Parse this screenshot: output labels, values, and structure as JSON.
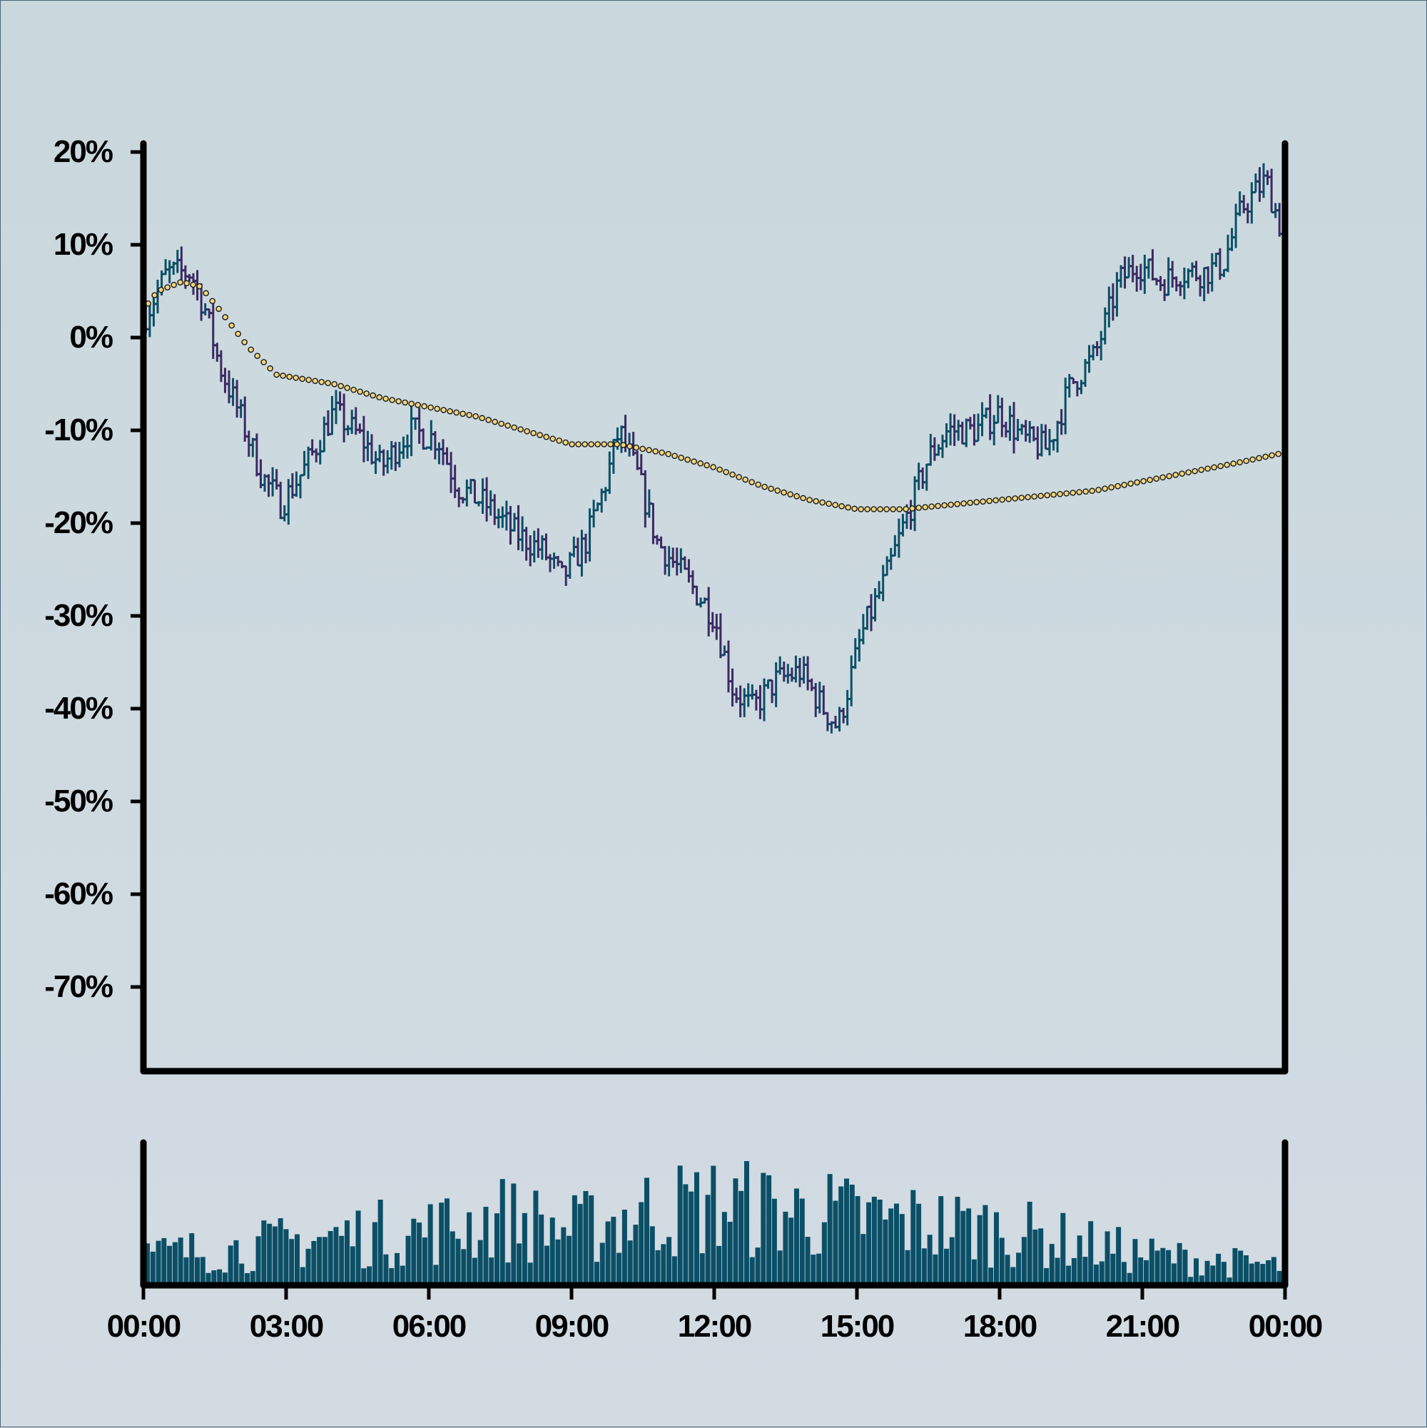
{
  "chart_data": [
    {
      "type": "ohlc",
      "panel": "price",
      "title": "",
      "xlabel": "",
      "ylabel": "",
      "ylim": [
        -80,
        20
      ],
      "y_ticks": [
        "20%",
        "10%",
        "0%",
        "-10%",
        "-20%",
        "-30%",
        "-40%",
        "-50%",
        "-60%",
        "-70%"
      ],
      "y_tick_values": [
        20,
        10,
        0,
        -10,
        -20,
        -30,
        -40,
        -50,
        -60,
        -70
      ],
      "x_ticks": [
        "00:00",
        "03:00",
        "06:00",
        "09:00",
        "12:00",
        "15:00",
        "18:00",
        "21:00",
        "00:00"
      ],
      "xlim_hours": [
        0,
        24
      ],
      "grid": false,
      "bar_interval_minutes": 5,
      "close_path": [
        [
          0.0,
          2
        ],
        [
          0.5,
          7
        ],
        [
          1.0,
          7
        ],
        [
          1.3,
          3
        ],
        [
          1.6,
          -3
        ],
        [
          2.0,
          -8
        ],
        [
          2.5,
          -15
        ],
        [
          2.9,
          -18
        ],
        [
          3.4,
          -14
        ],
        [
          4.0,
          -8
        ],
        [
          4.6,
          -11
        ],
        [
          5.0,
          -14
        ],
        [
          5.6,
          -10
        ],
        [
          6.2,
          -11
        ],
        [
          6.6,
          -16
        ],
        [
          7.2,
          -18
        ],
        [
          7.8,
          -21
        ],
        [
          8.4,
          -23
        ],
        [
          8.8,
          -26
        ],
        [
          9.3,
          -22
        ],
        [
          9.7,
          -16
        ],
        [
          10.0,
          -10
        ],
        [
          10.4,
          -15
        ],
        [
          10.8,
          -22
        ],
        [
          11.4,
          -26
        ],
        [
          12.0,
          -30
        ],
        [
          12.4,
          -38
        ],
        [
          12.8,
          -40
        ],
        [
          13.3,
          -37
        ],
        [
          13.8,
          -36
        ],
        [
          14.3,
          -40
        ],
        [
          14.6,
          -42
        ],
        [
          15.1,
          -32
        ],
        [
          15.6,
          -26
        ],
        [
          16.0,
          -20
        ],
        [
          16.5,
          -13
        ],
        [
          16.9,
          -10
        ],
        [
          17.5,
          -10
        ],
        [
          18.0,
          -8
        ],
        [
          18.5,
          -11
        ],
        [
          19.0,
          -12
        ],
        [
          19.5,
          -5
        ],
        [
          20.0,
          -2
        ],
        [
          20.5,
          6
        ],
        [
          20.9,
          8
        ],
        [
          21.4,
          6
        ],
        [
          21.8,
          7
        ],
        [
          22.3,
          7
        ],
        [
          22.7,
          8
        ],
        [
          23.1,
          14
        ],
        [
          23.6,
          17
        ],
        [
          23.9,
          12
        ]
      ],
      "colors": {
        "up": "#0b4f66",
        "down": "#3a2a62"
      }
    },
    {
      "type": "line",
      "panel": "price",
      "style": "dotted",
      "color": "#f2d57a",
      "marker_edge": "#1a1a1a",
      "points": [
        [
          0.0,
          3
        ],
        [
          0.3,
          5
        ],
        [
          0.8,
          6
        ],
        [
          1.2,
          5.5
        ],
        [
          1.6,
          3
        ],
        [
          2.2,
          -1
        ],
        [
          2.8,
          -4
        ],
        [
          3.4,
          -4.5
        ],
        [
          4.0,
          -5
        ],
        [
          5.0,
          -6.5
        ],
        [
          6.0,
          -7.5
        ],
        [
          7.0,
          -8.5
        ],
        [
          8.0,
          -10
        ],
        [
          9.0,
          -11.5
        ],
        [
          10.0,
          -11.5
        ],
        [
          11.0,
          -12.5
        ],
        [
          12.0,
          -14
        ],
        [
          13.0,
          -16
        ],
        [
          14.0,
          -17.5
        ],
        [
          15.0,
          -18.5
        ],
        [
          16.0,
          -18.5
        ],
        [
          17.0,
          -18
        ],
        [
          18.0,
          -17.5
        ],
        [
          19.0,
          -17
        ],
        [
          20.0,
          -16.5
        ],
        [
          21.0,
          -15.5
        ],
        [
          22.0,
          -14.5
        ],
        [
          23.0,
          -13.5
        ],
        [
          23.9,
          -12.5
        ]
      ]
    },
    {
      "type": "bar",
      "panel": "volume",
      "title": "",
      "xlabel": "",
      "ylabel": "",
      "color": "#0b4f66",
      "ylim": [
        0,
        1
      ],
      "volume_profile": [
        [
          0,
          0.25
        ],
        [
          2,
          0.3
        ],
        [
          4,
          0.4
        ],
        [
          6,
          0.45
        ],
        [
          7.5,
          0.55
        ],
        [
          9,
          0.45
        ],
        [
          10.5,
          0.6
        ],
        [
          12,
          0.65
        ],
        [
          13.5,
          0.6
        ],
        [
          15,
          0.55
        ],
        [
          16.5,
          0.5
        ],
        [
          18,
          0.45
        ],
        [
          19.5,
          0.35
        ],
        [
          21,
          0.25
        ],
        [
          22.5,
          0.2
        ],
        [
          24,
          0.15
        ]
      ]
    }
  ]
}
